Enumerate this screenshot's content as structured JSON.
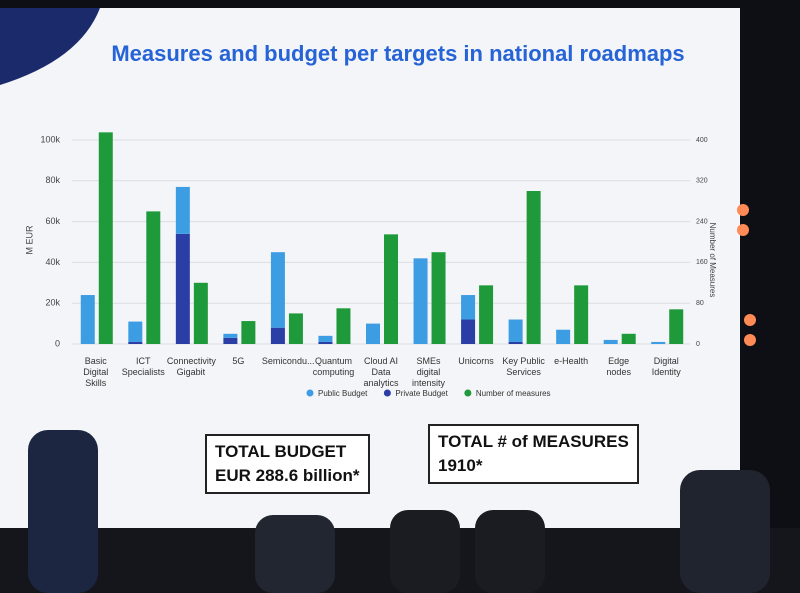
{
  "chart_data": {
    "type": "bar",
    "title": "Measures and budget per targets in national roadmaps",
    "y_label": "M EUR",
    "y2_label": "Number of Measures",
    "categories": [
      "Basic Digital Skills",
      "ICT Specialists",
      "Connectivity Gigabit",
      "5G",
      "Semicondu...",
      "Quantum computing",
      "Cloud AI Data analytics",
      "SMEs digital intensity",
      "Unicorns",
      "Key Public Services",
      "e-Health",
      "Edge nodes",
      "Digital Identity"
    ],
    "series": [
      {
        "name": "Public Budget",
        "color": "#3d9de2",
        "stack": "budget",
        "values": [
          24000,
          10000,
          23000,
          2000,
          37000,
          3000,
          10000,
          42000,
          12000,
          11000,
          7000,
          2000,
          1000
        ]
      },
      {
        "name": "Private Budget",
        "color": "#2b3ea6",
        "stack": "budget",
        "values": [
          0,
          1000,
          54000,
          3000,
          8000,
          1000,
          0,
          0,
          12000,
          1000,
          0,
          0,
          0
        ]
      },
      {
        "name": "Number of measures",
        "color": "#1f9a3b",
        "axis": "y2",
        "values": [
          415,
          260,
          120,
          45,
          60,
          70,
          215,
          180,
          115,
          300,
          115,
          20,
          68
        ]
      }
    ],
    "ylim": [
      0,
      100000
    ],
    "yticks": [
      0,
      {
        "value": 20000,
        "label": "20k"
      },
      {
        "value": 40000,
        "label": "40k"
      },
      {
        "value": 60000,
        "label": "60k"
      },
      {
        "value": 80000,
        "label": "80k"
      },
      {
        "value": 100000,
        "label": "100k"
      }
    ],
    "y2lim": [
      0,
      400
    ],
    "y2ticks": [
      0,
      80,
      160,
      240,
      320,
      400
    ],
    "grid": true,
    "legend": "bottom",
    "annotations": [
      {
        "title": "TOTAL BUDGET",
        "text": "EUR 288.6 billion*"
      },
      {
        "title": "TOTAL # of MEASURES",
        "text": "1910*"
      }
    ]
  }
}
